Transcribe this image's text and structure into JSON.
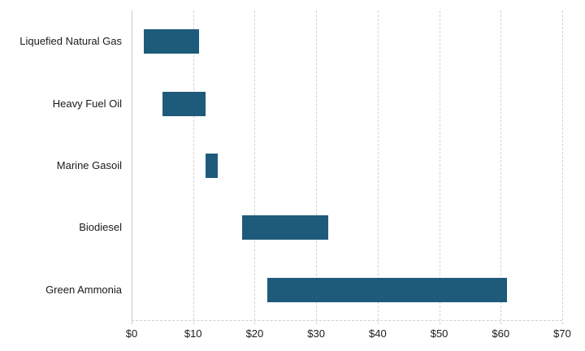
{
  "chart_data": {
    "type": "bar",
    "orientation": "horizontal",
    "variant": "range-bars",
    "title": "",
    "xlabel": "",
    "ylabel": "",
    "categories": [
      "Liquefied Natural Gas",
      "Heavy Fuel Oil",
      "Marine Gasoil",
      "Biodiesel",
      "Green Ammonia"
    ],
    "series": [
      {
        "name": "cost-range-usd",
        "ranges": [
          {
            "low": 2,
            "high": 11
          },
          {
            "low": 5,
            "high": 12
          },
          {
            "low": 12,
            "high": 14
          },
          {
            "low": 18,
            "high": 32
          },
          {
            "low": 22,
            "high": 61
          }
        ]
      }
    ],
    "xlim": [
      0,
      70
    ],
    "x_tick_values": [
      0,
      10,
      20,
      30,
      40,
      50,
      60,
      70
    ],
    "x_tick_labels": [
      "$0",
      "$10",
      "$20",
      "$30",
      "$40",
      "$50",
      "$60",
      "$70"
    ],
    "grid": "vertical-dashed",
    "legend": "none",
    "colors": {
      "bar": "#1e5b7a",
      "gridline": "#d2d2d2",
      "zero_axis": "#c9c9c9",
      "text": "#1a1a1a",
      "background": "#ffffff"
    }
  }
}
